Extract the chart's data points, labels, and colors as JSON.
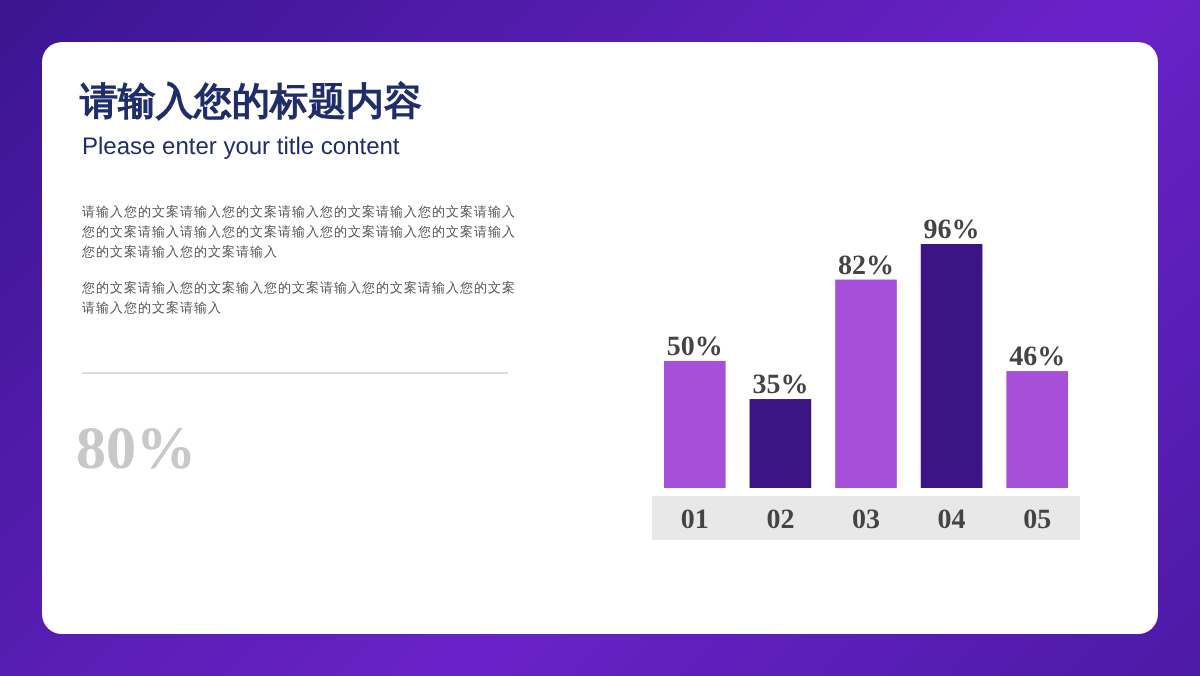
{
  "chart_data": {
    "type": "bar",
    "title": "请输入您的标题内容",
    "subtitle": "Please enter your title content",
    "annotations": [
      "请输入您的文案请输入您的文案请输入您的文案请输入您的文案请输入您的文案请输入请输入您的文案请输入您的文案请输入您的文案请输入您的文案请输入您的文案请输入",
      "您的文案请输入您的文案输入您的文案请输入您的文案请输入您的文案请输入您的文案请输入",
      "80%"
    ],
    "categories": [
      "01",
      "02",
      "03",
      "04",
      "05"
    ],
    "values": [
      50,
      35,
      82,
      96,
      46
    ],
    "colors": [
      "#a64fd8",
      "#3a1583",
      "#a64fd8",
      "#3a1583",
      "#a64fd8"
    ],
    "value_labels": [
      "50%",
      "35%",
      "82%",
      "96%",
      "46%"
    ]
  }
}
